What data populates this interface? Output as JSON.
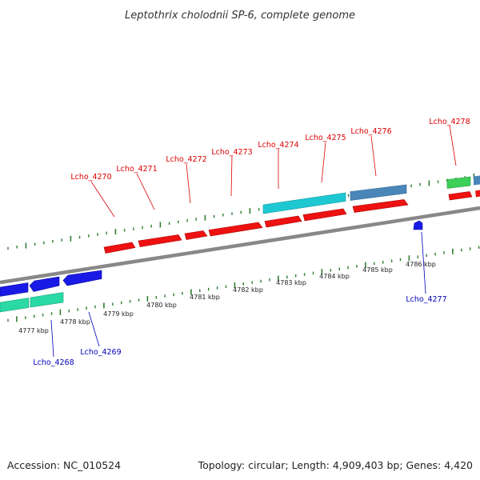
{
  "title": "Leptothrix cholodnii SP-6, complete genome",
  "footer": {
    "accession": "Accession: NC_010524",
    "summary": "Topology: circular; Length: 4,909,403 bp; Genes: 4,420"
  },
  "colors": {
    "forward_gene": "#ee1111",
    "reverse_gene": "#1a1ae6",
    "cyan_feature": "#1ec8d2",
    "steel_feature": "#4a86b8",
    "green_feature": "#3ccf5a",
    "teal_feature": "#2ad9a4",
    "tick": "#2e7d32",
    "backbone": "#888888",
    "forward_label": "#dd0000",
    "reverse_label": "#0000bb"
  },
  "scale": {
    "labels": [
      "4777 kbp",
      "4778 kbp",
      "4779 kbp",
      "4780 kbp",
      "4781 kbp",
      "4782 kbp",
      "4783 kbp",
      "4784 kbp",
      "4785 kbp",
      "4786 kbp"
    ]
  },
  "forward_genes": [
    {
      "name": "Lcho_4270"
    },
    {
      "name": "Lcho_4271"
    },
    {
      "name": "Lcho_4272"
    },
    {
      "name": "Lcho_4273"
    },
    {
      "name": "Lcho_4274"
    },
    {
      "name": "Lcho_4275"
    },
    {
      "name": "Lcho_4276"
    },
    {
      "name": "Lcho_4278"
    }
  ],
  "reverse_genes": [
    {
      "name": "Lcho_4268"
    },
    {
      "name": "Lcho_4269"
    },
    {
      "name": "Lcho_4277"
    }
  ]
}
